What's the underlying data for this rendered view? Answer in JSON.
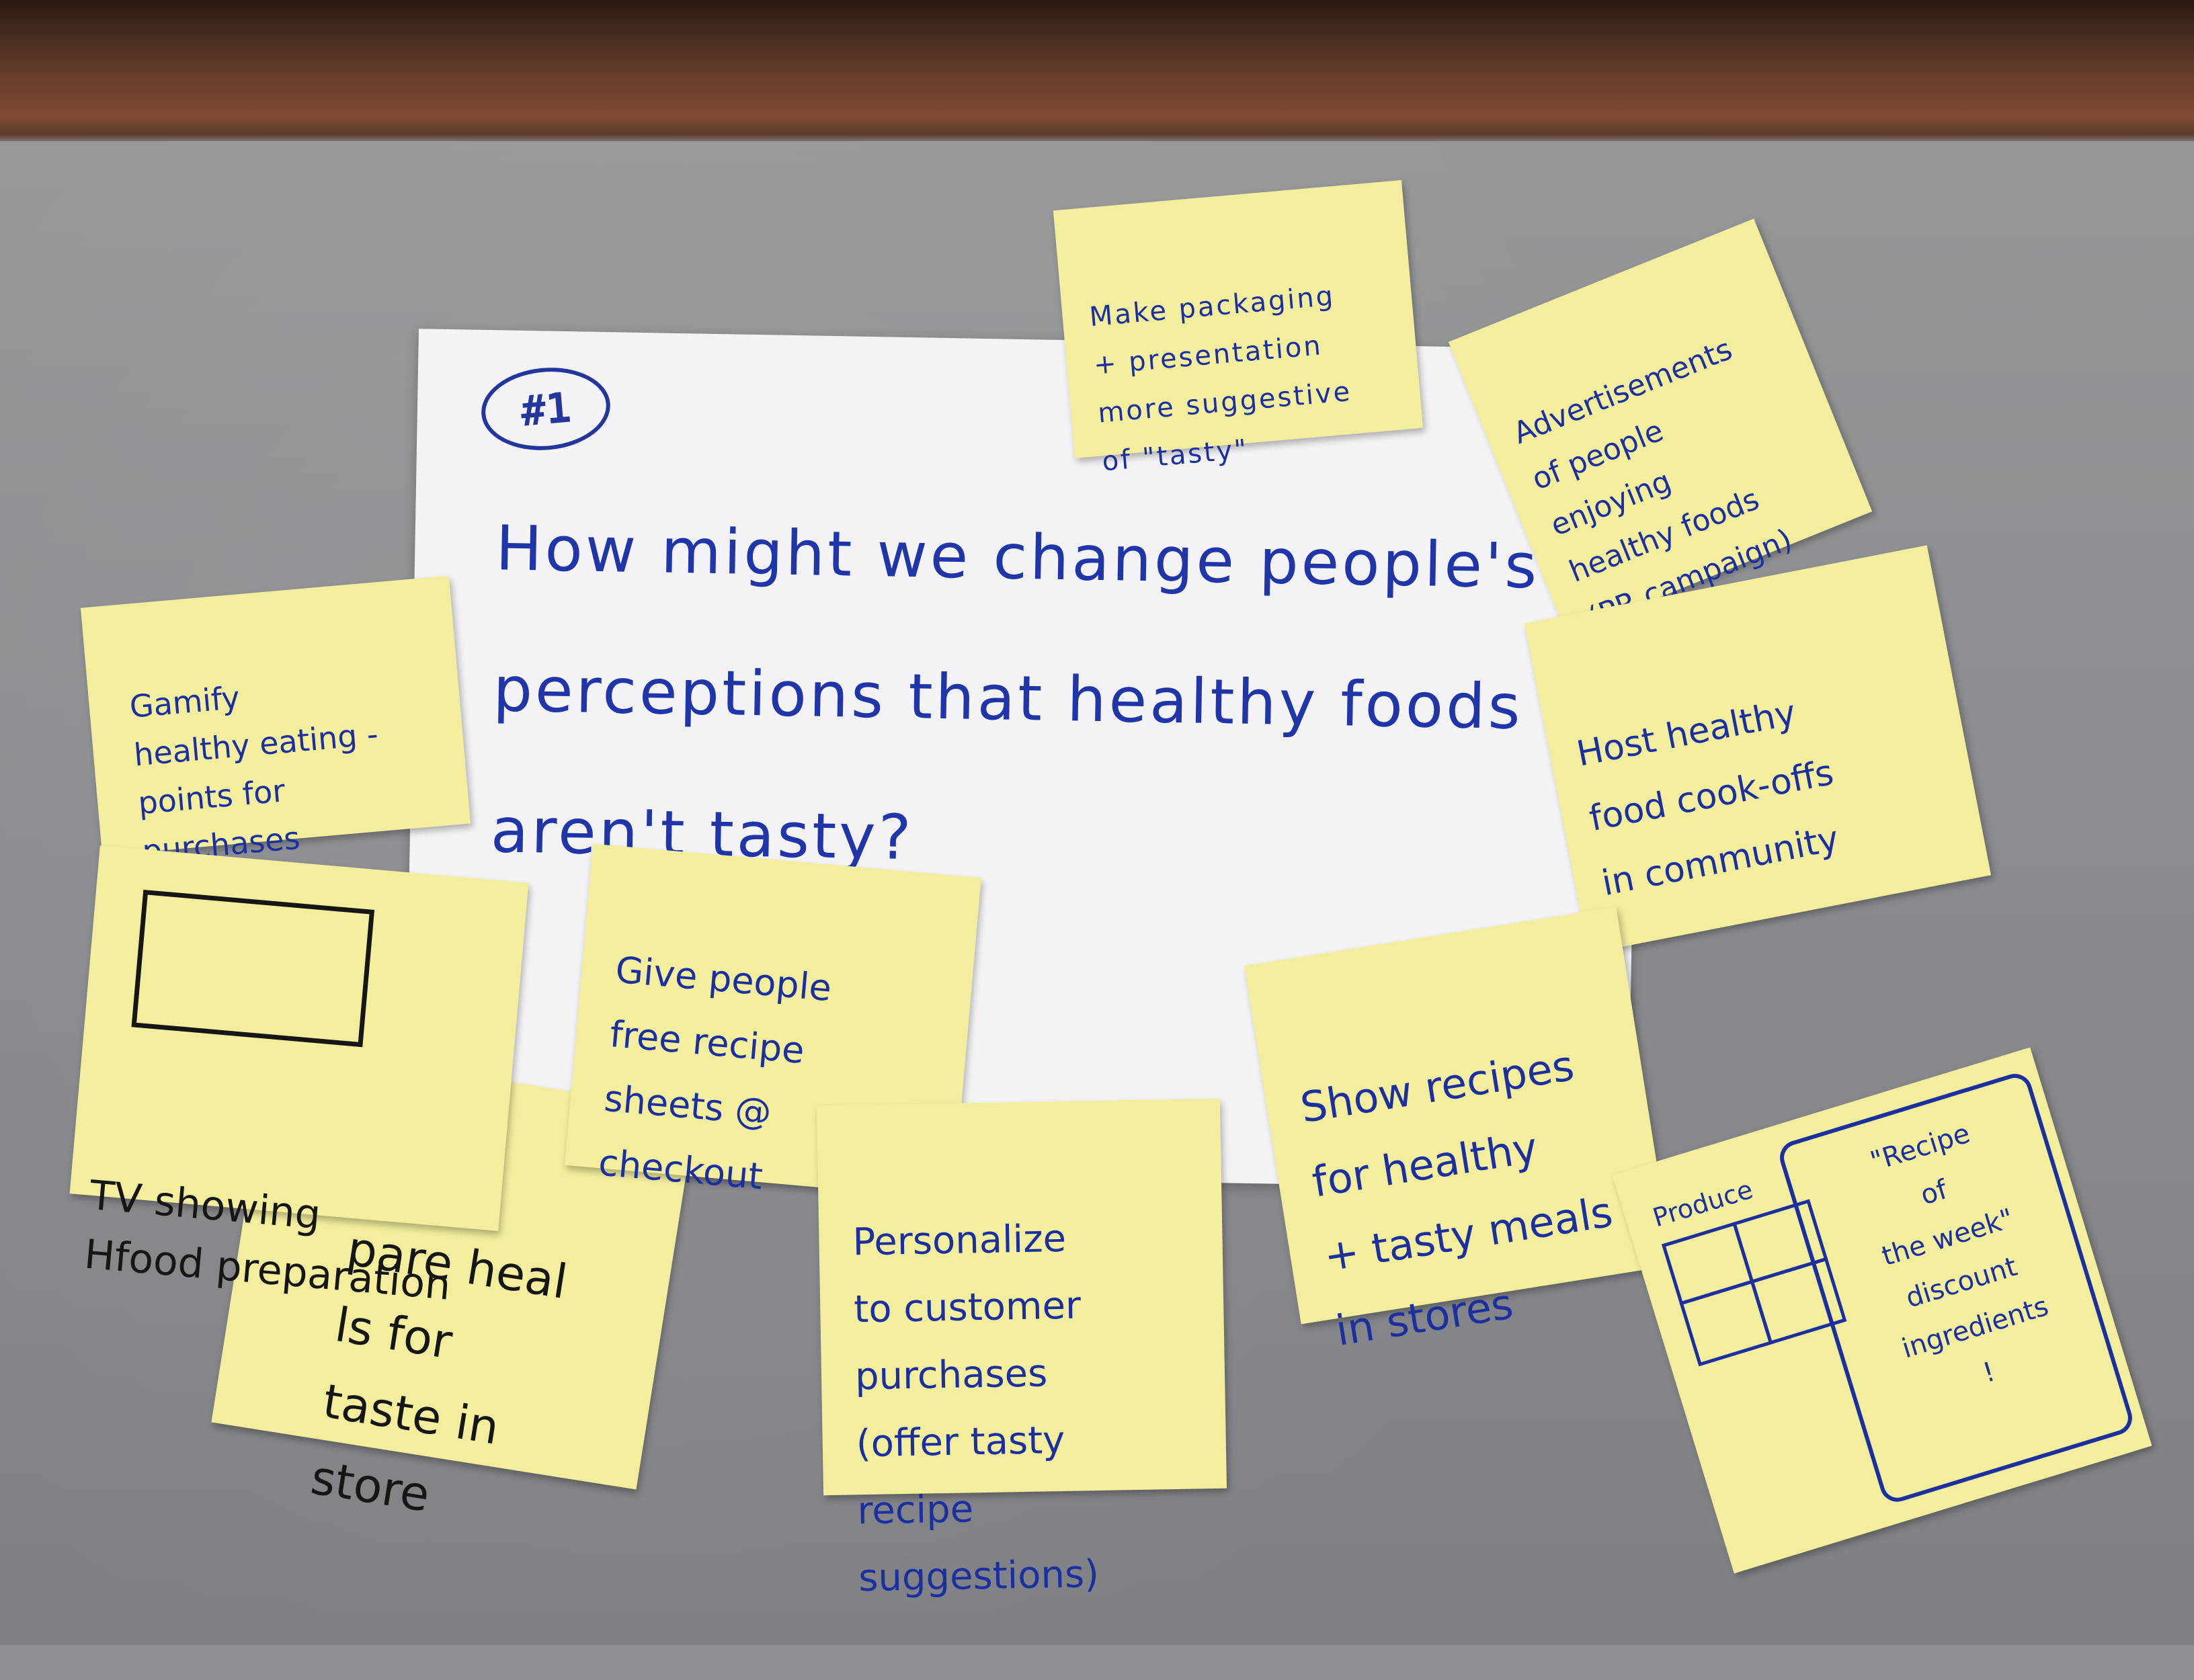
{
  "poster": {
    "number": "#1",
    "question": "How might we change people's perceptions that healthy foods aren't tasty?"
  },
  "notes": {
    "packaging": "Make packaging\n+ presentation\nmore suggestive\nof \"tasty\"",
    "advertisements": "Advertisements\nof people\nenjoying\nhealthy foods\n(PR campaign)",
    "cookoffs": "Host healthy\nfood cook-offs\nin community",
    "gamify": "Gamify\nhealthy eating -\npoints for\npurchases",
    "tv": "TV showing\nHfood preparation",
    "prepare_meals": "pare heal\nls for\ntaste in\nstore",
    "recipe_sheets": "Give people\nfree recipe\nsheets @\ncheckout",
    "personalize": "Personalize\nto customer\npurchases\n(offer tasty\nrecipe suggestions)",
    "show_recipes": "Show recipes\nfor healthy\n+ tasty meals\nin stores",
    "produce_label": "Produce",
    "recipe_week": "\"Recipe\nof\nthe week\"\ndiscount\ningredients\n!"
  },
  "colors": {
    "ink_blue": "#1c2f9f",
    "ink_black": "#161616",
    "sticky_yellow": "#f2ee9d",
    "poster_white": "#f3f3f6",
    "table_gray": "#8d8f93"
  }
}
